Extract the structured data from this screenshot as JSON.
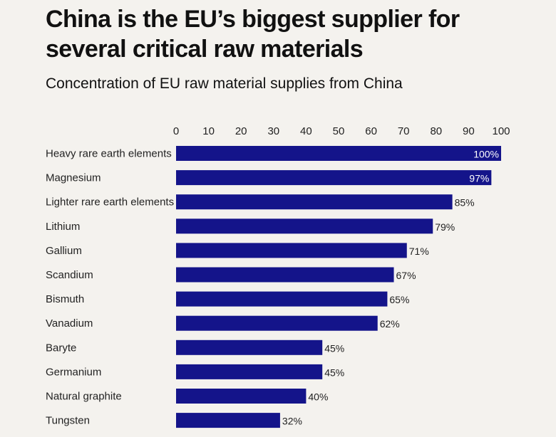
{
  "title": "China is the EU’s biggest supplier for several critical raw materials",
  "subtitle": "Concentration of EU raw material supplies from China",
  "colors": {
    "bar": "#14148a",
    "background": "#f4f2ee",
    "label_inside": "#ffffff",
    "label_outside": "#222222"
  },
  "chart_data": {
    "type": "bar",
    "orientation": "horizontal",
    "categories": [
      "Heavy rare earth elements",
      "Magnesium",
      "Lighter rare earth elements",
      "Lithium",
      "Gallium",
      "Scandium",
      "Bismuth",
      "Vanadium",
      "Baryte",
      "Germanium",
      "Natural graphite",
      "Tungsten"
    ],
    "values": [
      100,
      97,
      85,
      79,
      71,
      67,
      65,
      62,
      45,
      45,
      40,
      32
    ],
    "value_labels": [
      "100%",
      "97%",
      "85%",
      "79%",
      "71%",
      "67%",
      "65%",
      "62%",
      "45%",
      "45%",
      "40%",
      "32%"
    ],
    "xlim": [
      0,
      100
    ],
    "xticks": [
      0,
      10,
      20,
      30,
      40,
      50,
      60,
      70,
      80,
      90,
      100
    ],
    "xaxis_position": "top",
    "grid": false,
    "legend": "none"
  }
}
